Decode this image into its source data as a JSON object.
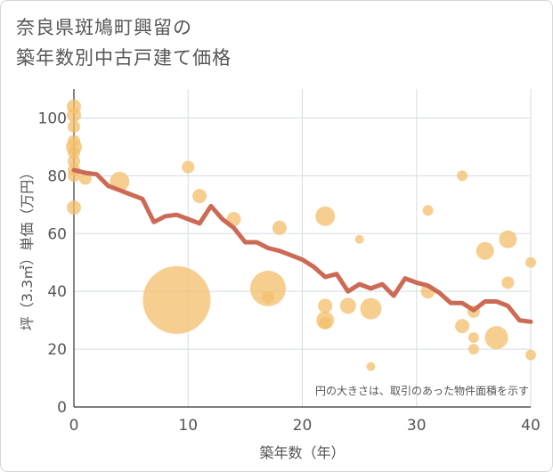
{
  "title_line1": "奈良県斑鳩町興留の",
  "title_line2": "築年数別中古戸建て価格",
  "chart_data": {
    "type": "scatter",
    "xlabel": "築年数（年）",
    "ylabel": "坪（3.3㎡）単価（万円）",
    "xlim": [
      0,
      40
    ],
    "ylim": [
      0,
      110
    ],
    "xticks": [
      "0",
      "10",
      "20",
      "30",
      "40"
    ],
    "yticks": [
      "0",
      "20",
      "40",
      "60",
      "80",
      "100"
    ],
    "xtick_values": [
      0,
      10,
      20,
      30,
      40
    ],
    "ytick_values": [
      0,
      20,
      40,
      60,
      80,
      100
    ],
    "grid": true,
    "note": "円の大きさは、取引のあった物件面積を示す",
    "colors": {
      "bubble": "#f3bf6b",
      "line": "#cd6a55",
      "grid": "#d3dde4"
    },
    "bubbles": [
      {
        "x": 0,
        "y": 104,
        "size": 8
      },
      {
        "x": 0,
        "y": 101,
        "size": 8
      },
      {
        "x": 0,
        "y": 97,
        "size": 7
      },
      {
        "x": 0,
        "y": 92,
        "size": 7
      },
      {
        "x": 0,
        "y": 90,
        "size": 9
      },
      {
        "x": 0,
        "y": 88,
        "size": 7
      },
      {
        "x": 0,
        "y": 85,
        "size": 7
      },
      {
        "x": 0,
        "y": 82,
        "size": 7
      },
      {
        "x": 0,
        "y": 80,
        "size": 7
      },
      {
        "x": 0,
        "y": 69,
        "size": 8
      },
      {
        "x": 1,
        "y": 79,
        "size": 7
      },
      {
        "x": 4,
        "y": 78,
        "size": 11
      },
      {
        "x": 9,
        "y": 37,
        "size": 38
      },
      {
        "x": 10,
        "y": 83,
        "size": 7
      },
      {
        "x": 11,
        "y": 73,
        "size": 8
      },
      {
        "x": 14,
        "y": 65,
        "size": 8
      },
      {
        "x": 17,
        "y": 41,
        "size": 20
      },
      {
        "x": 17,
        "y": 38,
        "size": 7
      },
      {
        "x": 18,
        "y": 62,
        "size": 8
      },
      {
        "x": 22,
        "y": 66,
        "size": 11
      },
      {
        "x": 22,
        "y": 35,
        "size": 8
      },
      {
        "x": 22,
        "y": 30,
        "size": 10
      },
      {
        "x": 22,
        "y": 29,
        "size": 7
      },
      {
        "x": 24,
        "y": 35,
        "size": 9
      },
      {
        "x": 25,
        "y": 58,
        "size": 5
      },
      {
        "x": 26,
        "y": 34,
        "size": 12
      },
      {
        "x": 26,
        "y": 14,
        "size": 5
      },
      {
        "x": 31,
        "y": 68,
        "size": 6
      },
      {
        "x": 31,
        "y": 40,
        "size": 8
      },
      {
        "x": 34,
        "y": 80,
        "size": 6
      },
      {
        "x": 34,
        "y": 28,
        "size": 8
      },
      {
        "x": 35,
        "y": 33,
        "size": 7
      },
      {
        "x": 35,
        "y": 24,
        "size": 6
      },
      {
        "x": 35,
        "y": 20,
        "size": 6
      },
      {
        "x": 36,
        "y": 54,
        "size": 10
      },
      {
        "x": 37,
        "y": 24,
        "size": 13
      },
      {
        "x": 38,
        "y": 58,
        "size": 10
      },
      {
        "x": 38,
        "y": 43,
        "size": 7
      },
      {
        "x": 40,
        "y": 50,
        "size": 6
      },
      {
        "x": 40,
        "y": 18,
        "size": 6
      }
    ],
    "series": [
      {
        "x": [
          0,
          1,
          2,
          3,
          4,
          5,
          6,
          7,
          8,
          9,
          10,
          11,
          12,
          13,
          14,
          15,
          16,
          17,
          18,
          19,
          20,
          21,
          22,
          23,
          24,
          25,
          26,
          27,
          28,
          29,
          30,
          31,
          32,
          33,
          34,
          35,
          36,
          37,
          38,
          39,
          40
        ],
        "values": [
          82,
          81,
          80.5,
          76.5,
          75,
          73.5,
          72,
          64,
          66,
          66.5,
          65,
          63.5,
          69.5,
          65,
          62,
          57,
          57,
          55,
          54,
          52.5,
          51,
          48.5,
          45,
          46,
          40,
          42.5,
          41,
          42.5,
          38.5,
          44.5,
          43,
          42,
          39.5,
          36,
          36,
          33.5,
          36.5,
          36.5,
          35,
          30,
          29.5
        ]
      }
    ]
  }
}
